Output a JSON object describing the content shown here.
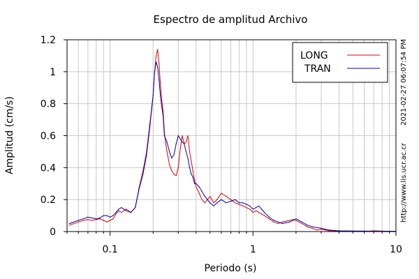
{
  "chart_data": {
    "type": "line",
    "title": "Espectro de amplitud Archivo",
    "xlabel": "Periodo (s)",
    "ylabel": "Amplitud (cm/s)",
    "xscale": "log",
    "xlim": [
      0.05,
      10
    ],
    "ylim": [
      0,
      1.2
    ],
    "grid": true,
    "legend_position": "top-right",
    "xticks": [
      {
        "value": 0.1,
        "label": "0.1"
      },
      {
        "value": 1,
        "label": "1"
      },
      {
        "value": 10,
        "label": "10"
      }
    ],
    "yticks": [
      {
        "value": 0,
        "label": "0"
      },
      {
        "value": 0.2,
        "label": "0.2"
      },
      {
        "value": 0.4,
        "label": "0.4"
      },
      {
        "value": 0.6,
        "label": "0.6"
      },
      {
        "value": 0.8,
        "label": "0.8"
      },
      {
        "value": 1.0,
        "label": "1"
      },
      {
        "value": 1.2,
        "label": "1.2"
      }
    ],
    "side_annotations": {
      "timestamp": "2021-02-27 06:07:54 PM",
      "url": "http://www.lis.ucr.ac.cr"
    },
    "series": [
      {
        "name": "LONG",
        "color": "#e00000",
        "x": [
          0.052,
          0.06,
          0.065,
          0.07,
          0.075,
          0.08,
          0.085,
          0.09,
          0.095,
          0.1,
          0.105,
          0.11,
          0.115,
          0.12,
          0.125,
          0.13,
          0.14,
          0.15,
          0.16,
          0.17,
          0.18,
          0.19,
          0.2,
          0.205,
          0.21,
          0.215,
          0.22,
          0.225,
          0.23,
          0.235,
          0.24,
          0.245,
          0.25,
          0.26,
          0.27,
          0.28,
          0.29,
          0.3,
          0.31,
          0.32,
          0.33,
          0.34,
          0.35,
          0.36,
          0.37,
          0.38,
          0.39,
          0.4,
          0.42,
          0.44,
          0.46,
          0.48,
          0.5,
          0.53,
          0.56,
          0.6,
          0.65,
          0.7,
          0.75,
          0.8,
          0.85,
          0.9,
          0.95,
          1.0,
          1.05,
          1.1,
          1.15,
          1.2,
          1.3,
          1.4,
          1.5,
          1.6,
          1.7,
          1.8,
          1.9,
          2.0,
          2.1,
          2.2,
          2.4,
          2.6,
          2.8,
          3.0,
          3.2,
          3.4,
          3.6,
          3.8,
          4.0,
          4.5,
          5.0,
          5.5,
          6.0,
          6.5,
          7.0,
          8.0,
          9.0,
          10.0
        ],
        "y": [
          0.04,
          0.06,
          0.07,
          0.075,
          0.07,
          0.075,
          0.08,
          0.07,
          0.06,
          0.07,
          0.08,
          0.11,
          0.13,
          0.12,
          0.13,
          0.14,
          0.12,
          0.15,
          0.28,
          0.38,
          0.5,
          0.68,
          0.85,
          1.0,
          1.1,
          1.14,
          1.05,
          0.92,
          0.82,
          0.75,
          0.62,
          0.55,
          0.5,
          0.42,
          0.38,
          0.36,
          0.35,
          0.4,
          0.52,
          0.6,
          0.55,
          0.56,
          0.6,
          0.5,
          0.44,
          0.38,
          0.32,
          0.28,
          0.24,
          0.2,
          0.18,
          0.2,
          0.22,
          0.18,
          0.2,
          0.24,
          0.22,
          0.2,
          0.18,
          0.17,
          0.16,
          0.15,
          0.14,
          0.12,
          0.13,
          0.12,
          0.11,
          0.1,
          0.08,
          0.06,
          0.05,
          0.06,
          0.065,
          0.07,
          0.075,
          0.07,
          0.06,
          0.05,
          0.03,
          0.02,
          0.01,
          0.015,
          0.01,
          0.005,
          0.005,
          0.004,
          0.003,
          0.003,
          0.003,
          0.002,
          0.002,
          0.003,
          0.005,
          0.003,
          0.002,
          0.002
        ]
      },
      {
        "name": "TRAN",
        "color": "#0000b0",
        "x": [
          0.052,
          0.06,
          0.065,
          0.07,
          0.075,
          0.08,
          0.085,
          0.09,
          0.095,
          0.1,
          0.105,
          0.11,
          0.115,
          0.12,
          0.125,
          0.13,
          0.14,
          0.15,
          0.16,
          0.17,
          0.18,
          0.19,
          0.2,
          0.205,
          0.21,
          0.215,
          0.22,
          0.225,
          0.23,
          0.235,
          0.24,
          0.245,
          0.25,
          0.26,
          0.27,
          0.28,
          0.29,
          0.3,
          0.31,
          0.32,
          0.33,
          0.34,
          0.35,
          0.36,
          0.37,
          0.38,
          0.39,
          0.4,
          0.42,
          0.44,
          0.46,
          0.48,
          0.5,
          0.53,
          0.56,
          0.6,
          0.65,
          0.7,
          0.75,
          0.8,
          0.85,
          0.9,
          0.95,
          1.0,
          1.05,
          1.1,
          1.15,
          1.2,
          1.3,
          1.4,
          1.5,
          1.6,
          1.7,
          1.8,
          1.9,
          2.0,
          2.1,
          2.2,
          2.4,
          2.6,
          2.8,
          3.0,
          3.2,
          3.4,
          3.6,
          3.8,
          4.0,
          4.5,
          5.0,
          5.5,
          6.0,
          6.5,
          7.0,
          8.0,
          9.0,
          10.0
        ],
        "y": [
          0.05,
          0.07,
          0.08,
          0.09,
          0.085,
          0.08,
          0.085,
          0.1,
          0.1,
          0.09,
          0.1,
          0.12,
          0.14,
          0.15,
          0.14,
          0.13,
          0.12,
          0.15,
          0.27,
          0.36,
          0.48,
          0.66,
          0.85,
          1.0,
          1.06,
          1.03,
          0.95,
          0.85,
          0.78,
          0.72,
          0.6,
          0.58,
          0.56,
          0.5,
          0.46,
          0.48,
          0.55,
          0.6,
          0.58,
          0.56,
          0.55,
          0.5,
          0.46,
          0.4,
          0.36,
          0.34,
          0.3,
          0.3,
          0.28,
          0.25,
          0.22,
          0.2,
          0.18,
          0.16,
          0.18,
          0.2,
          0.18,
          0.19,
          0.2,
          0.18,
          0.18,
          0.17,
          0.16,
          0.14,
          0.15,
          0.16,
          0.14,
          0.12,
          0.09,
          0.07,
          0.06,
          0.05,
          0.055,
          0.06,
          0.07,
          0.08,
          0.07,
          0.06,
          0.04,
          0.03,
          0.025,
          0.02,
          0.015,
          0.01,
          0.008,
          0.006,
          0.005,
          0.004,
          0.003,
          0.003,
          0.003,
          0.002,
          0.002,
          0.002,
          0.002,
          0.002
        ]
      }
    ]
  }
}
